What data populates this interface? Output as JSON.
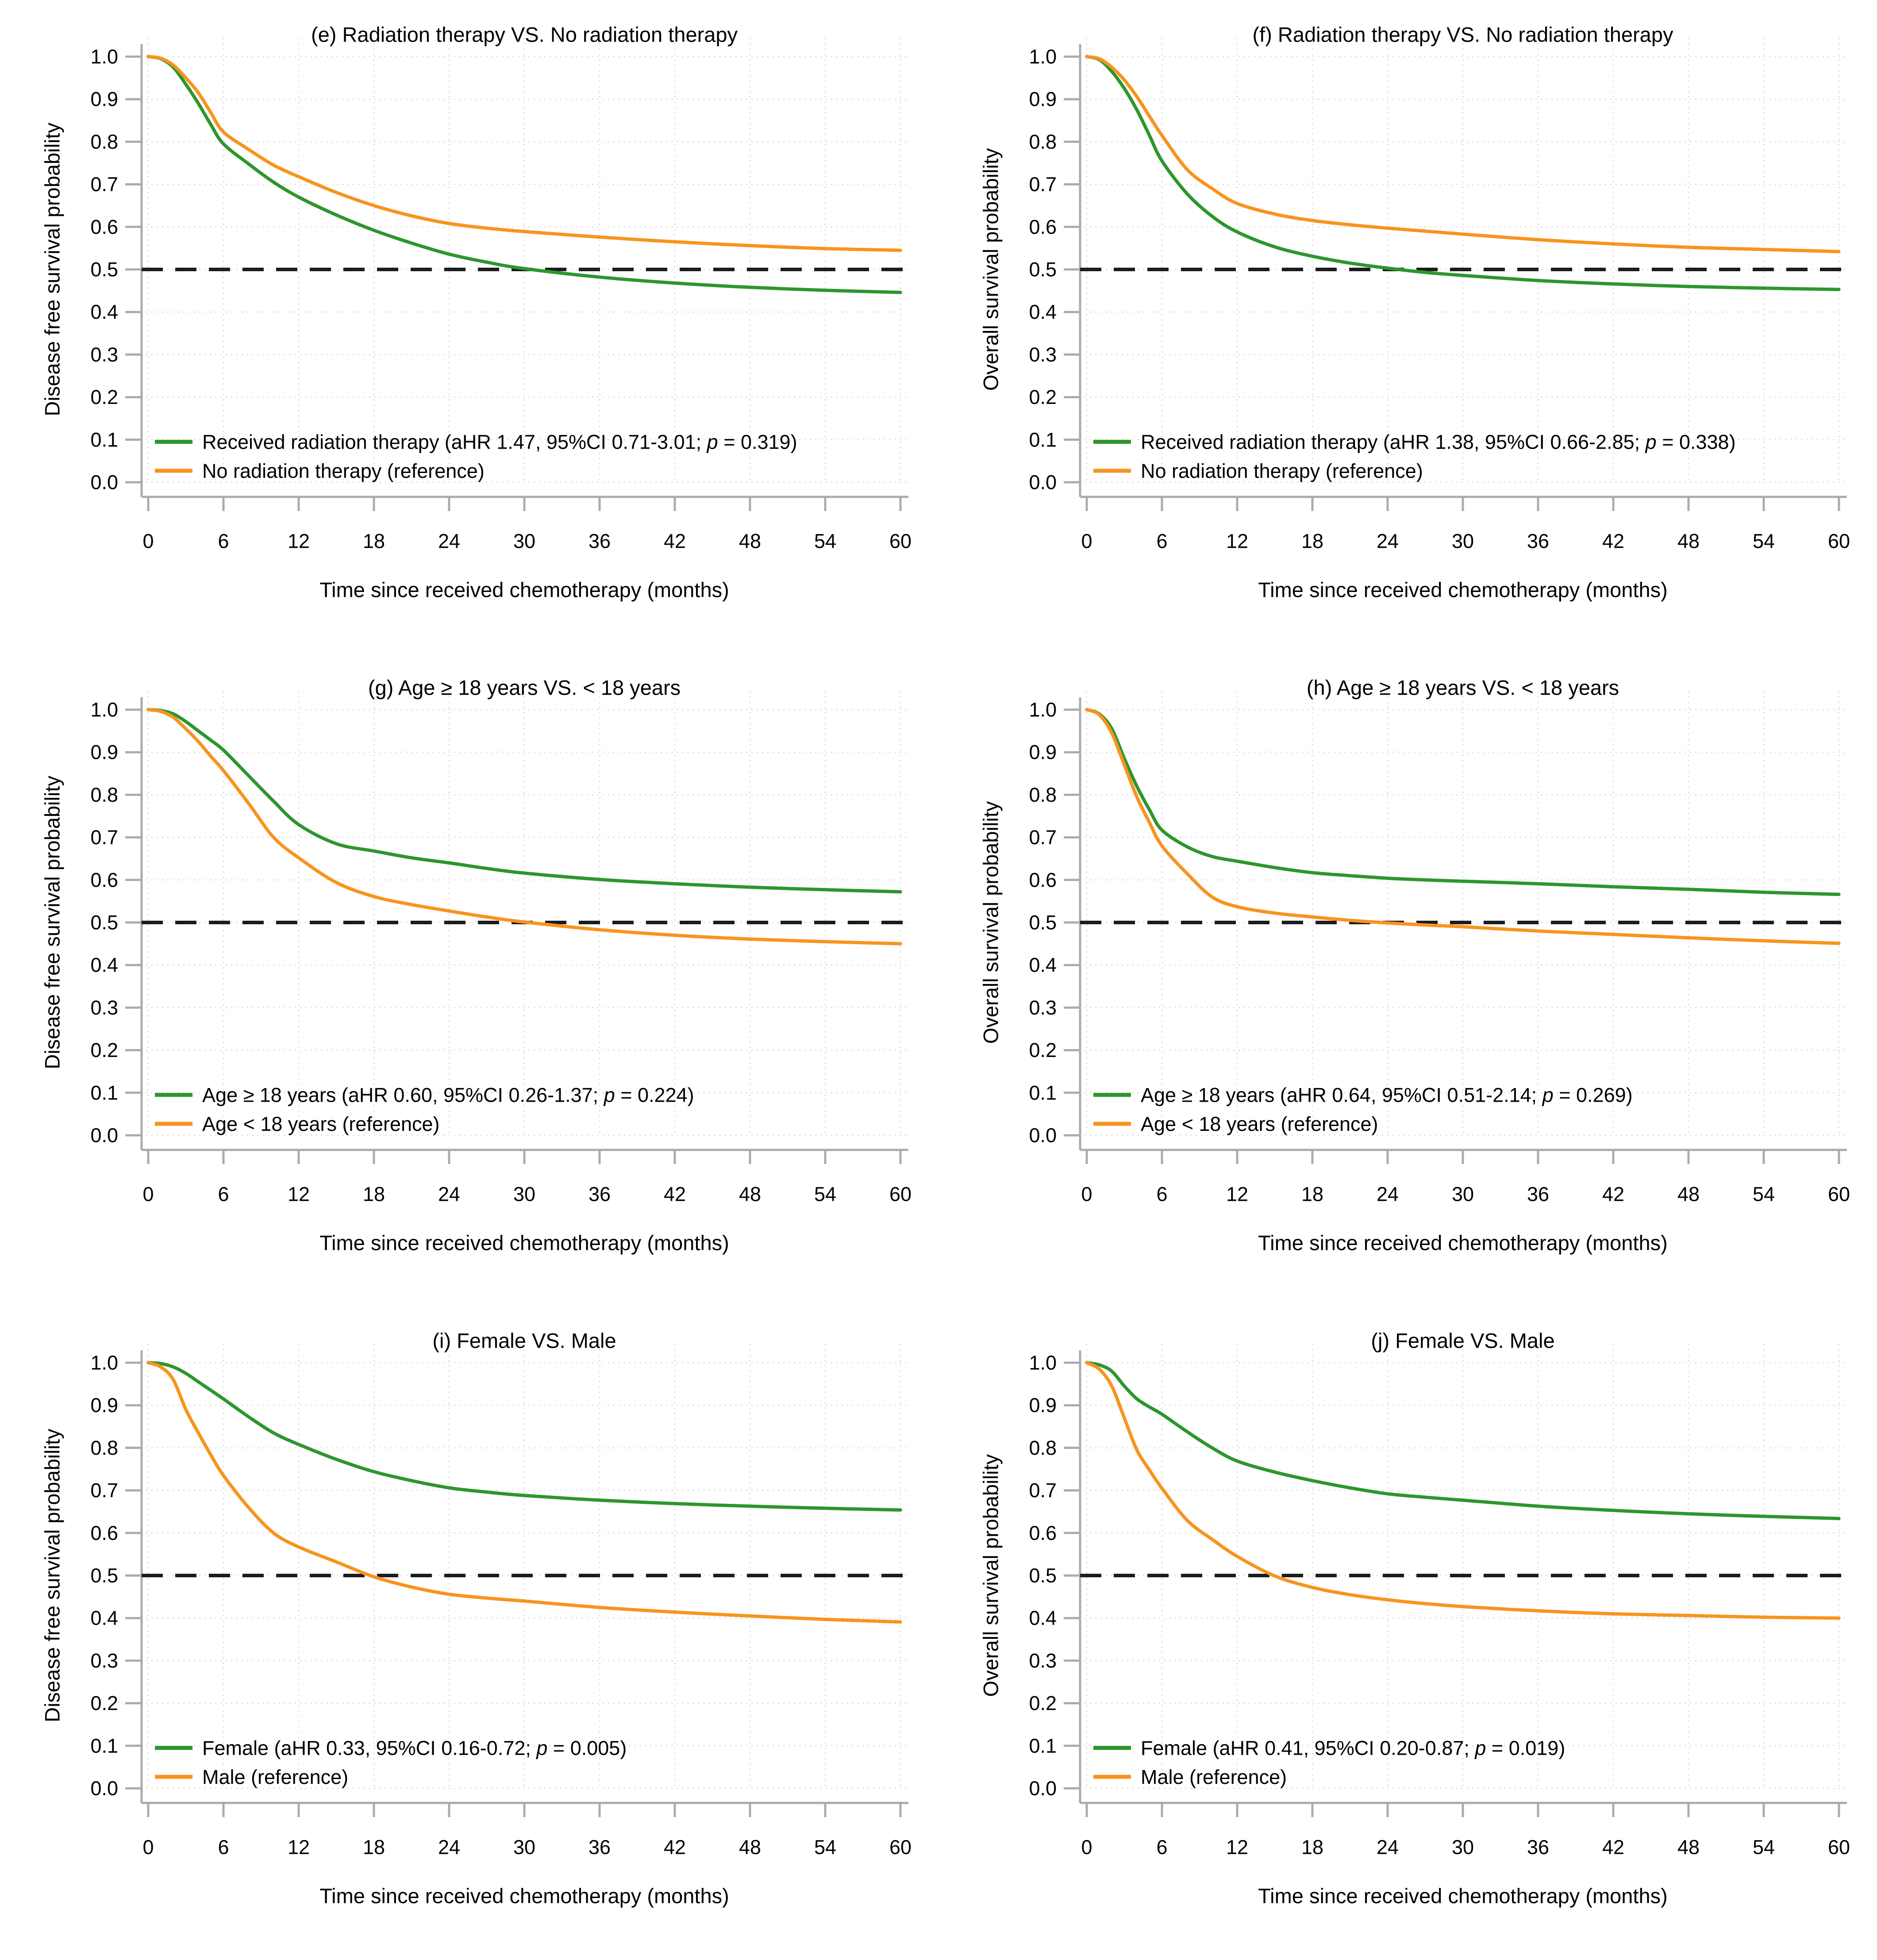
{
  "shared": {
    "xlabel": "Time since received chemotherapy (months)",
    "xticks": [
      0,
      6,
      12,
      18,
      24,
      30,
      36,
      42,
      48,
      54,
      60
    ],
    "yticks": [
      "0.0",
      "0.1",
      "0.2",
      "0.3",
      "0.4",
      "0.5",
      "0.6",
      "0.7",
      "0.8",
      "0.9",
      "1.0"
    ],
    "reference_line": 0.5,
    "xlim": [
      0,
      60
    ],
    "ylim": [
      0.0,
      1.0
    ],
    "grid": "dotted, on",
    "legend_position": "lower left inside plot",
    "colors": {
      "green": "#2D962D",
      "orange": "#F7941E",
      "axis": "#ABABAB",
      "gridline": "#DADADA",
      "reference_dashed": "#1C1C1C",
      "text": "#000000",
      "background": "#FFFFFF"
    }
  },
  "chart_data": [
    {
      "id": "e",
      "type": "line",
      "title": "(e) Radiation therapy VS. No radiation therapy",
      "ylabel": "Disease free survival probability",
      "x": [
        0,
        1,
        2,
        3,
        4,
        5,
        6,
        8,
        10,
        12,
        15,
        18,
        21,
        24,
        27,
        30,
        36,
        42,
        48,
        54,
        60
      ],
      "series": [
        {
          "name": "Received radiation therapy",
          "color_key": "green",
          "legend_pre": "Received radiation therapy (aHR 1.47, 95%CI 0.71-3.01; ",
          "legend_p": "p",
          "legend_post": " = 0.319)",
          "values": [
            1.0,
            0.995,
            0.975,
            0.935,
            0.89,
            0.84,
            0.795,
            0.748,
            0.705,
            0.67,
            0.628,
            0.592,
            0.562,
            0.536,
            0.517,
            0.502,
            0.482,
            0.468,
            0.458,
            0.451,
            0.446
          ]
        },
        {
          "name": "No radiation therapy",
          "color_key": "orange",
          "legend_pre": "No radiation therapy (reference)",
          "values": [
            1.0,
            0.996,
            0.98,
            0.95,
            0.915,
            0.868,
            0.823,
            0.782,
            0.745,
            0.718,
            0.681,
            0.65,
            0.626,
            0.608,
            0.597,
            0.589,
            0.576,
            0.565,
            0.556,
            0.549,
            0.545
          ]
        }
      ]
    },
    {
      "id": "f",
      "type": "line",
      "title": "(f) Radiation therapy VS. No radiation therapy",
      "ylabel": "Overall survival probability",
      "x": [
        0,
        1,
        2,
        3,
        4,
        5,
        6,
        8,
        10,
        12,
        15,
        18,
        21,
        24,
        27,
        30,
        36,
        42,
        48,
        54,
        60
      ],
      "series": [
        {
          "name": "Received radiation therapy",
          "color_key": "green",
          "legend_pre": "Received radiation therapy (aHR 1.38, 95%CI 0.66-2.85; ",
          "legend_p": "p",
          "legend_post": " = 0.338)",
          "values": [
            1.0,
            0.993,
            0.965,
            0.925,
            0.875,
            0.815,
            0.755,
            0.678,
            0.625,
            0.588,
            0.553,
            0.531,
            0.515,
            0.503,
            0.493,
            0.486,
            0.474,
            0.466,
            0.46,
            0.456,
            0.453
          ]
        },
        {
          "name": "No radiation therapy",
          "color_key": "orange",
          "legend_pre": "No radiation therapy (reference)",
          "values": [
            1.0,
            0.995,
            0.975,
            0.945,
            0.906,
            0.86,
            0.815,
            0.735,
            0.69,
            0.655,
            0.63,
            0.615,
            0.605,
            0.597,
            0.59,
            0.583,
            0.57,
            0.56,
            0.552,
            0.547,
            0.542
          ]
        }
      ]
    },
    {
      "id": "g",
      "type": "line",
      "title": "(g) Age ≥ 18 years VS. < 18 years",
      "ylabel": "Disease free survival probability",
      "x": [
        0,
        1,
        2,
        3,
        4,
        5,
        6,
        8,
        10,
        12,
        15,
        18,
        21,
        24,
        27,
        30,
        36,
        42,
        48,
        54,
        60
      ],
      "series": [
        {
          "name": "Age ≥ 18 years",
          "color_key": "green",
          "legend_pre": "Age ≥ 18 years (aHR 0.60, 95%CI 0.26-1.37; ",
          "legend_p": "p",
          "legend_post": " = 0.224)",
          "values": [
            1.0,
            0.998,
            0.99,
            0.972,
            0.95,
            0.928,
            0.905,
            0.845,
            0.785,
            0.73,
            0.685,
            0.668,
            0.652,
            0.64,
            0.627,
            0.616,
            0.601,
            0.591,
            0.583,
            0.577,
            0.572
          ]
        },
        {
          "name": "Age < 18 years",
          "color_key": "orange",
          "legend_pre": "Age < 18 years (reference)",
          "values": [
            1.0,
            0.996,
            0.982,
            0.955,
            0.925,
            0.89,
            0.857,
            0.78,
            0.7,
            0.652,
            0.594,
            0.561,
            0.542,
            0.527,
            0.513,
            0.501,
            0.483,
            0.47,
            0.461,
            0.455,
            0.45
          ]
        }
      ]
    },
    {
      "id": "h",
      "type": "line",
      "title": "(h) Age ≥ 18 years VS. < 18 years",
      "ylabel": "Overall survival probability",
      "x": [
        0,
        1,
        2,
        3,
        4,
        5,
        6,
        8,
        10,
        12,
        15,
        18,
        21,
        24,
        27,
        30,
        36,
        42,
        48,
        54,
        60
      ],
      "series": [
        {
          "name": "Age ≥ 18 years",
          "color_key": "green",
          "legend_pre": "Age ≥ 18 years (aHR 0.64, 95%CI 0.51-2.14; ",
          "legend_p": "p",
          "legend_post": " = 0.269)",
          "values": [
            1.0,
            0.99,
            0.955,
            0.885,
            0.82,
            0.765,
            0.717,
            0.678,
            0.655,
            0.644,
            0.629,
            0.617,
            0.61,
            0.604,
            0.6,
            0.597,
            0.591,
            0.584,
            0.578,
            0.571,
            0.566
          ]
        },
        {
          "name": "Age < 18 years",
          "color_key": "orange",
          "legend_pre": "Age < 18 years (reference)",
          "values": [
            1.0,
            0.988,
            0.945,
            0.87,
            0.795,
            0.735,
            0.68,
            0.615,
            0.56,
            0.537,
            0.522,
            0.513,
            0.505,
            0.499,
            0.494,
            0.49,
            0.48,
            0.472,
            0.464,
            0.457,
            0.451
          ]
        }
      ]
    },
    {
      "id": "i",
      "type": "line",
      "title": "(i) Female VS. Male",
      "ylabel": "Disease free survival probability",
      "x": [
        0,
        1,
        2,
        3,
        4,
        5,
        6,
        8,
        10,
        12,
        15,
        18,
        21,
        24,
        27,
        30,
        36,
        42,
        48,
        54,
        60
      ],
      "series": [
        {
          "name": "Female",
          "color_key": "green",
          "legend_pre": "Female (aHR 0.33, 95%CI 0.16-0.72; ",
          "legend_p": "p",
          "legend_post": " = 0.005)",
          "values": [
            1.0,
            0.998,
            0.99,
            0.975,
            0.955,
            0.935,
            0.915,
            0.873,
            0.835,
            0.808,
            0.773,
            0.744,
            0.723,
            0.706,
            0.696,
            0.688,
            0.677,
            0.669,
            0.663,
            0.658,
            0.654
          ]
        },
        {
          "name": "Male",
          "color_key": "orange",
          "legend_pre": "Male (reference)",
          "values": [
            1.0,
            0.99,
            0.96,
            0.89,
            0.835,
            0.783,
            0.735,
            0.66,
            0.6,
            0.567,
            0.532,
            0.497,
            0.473,
            0.456,
            0.447,
            0.44,
            0.425,
            0.414,
            0.405,
            0.397,
            0.391
          ]
        }
      ]
    },
    {
      "id": "j",
      "type": "line",
      "title": "(j) Female VS. Male",
      "ylabel": "Overall survival probability",
      "x": [
        0,
        1,
        2,
        3,
        4,
        5,
        6,
        8,
        10,
        12,
        15,
        18,
        21,
        24,
        27,
        30,
        36,
        42,
        48,
        54,
        60
      ],
      "series": [
        {
          "name": "Female",
          "color_key": "green",
          "legend_pre": "Female (aHR 0.41, 95%CI 0.20-0.87; ",
          "legend_p": "p",
          "legend_post": " = 0.019)",
          "values": [
            1.0,
            0.995,
            0.98,
            0.945,
            0.915,
            0.896,
            0.879,
            0.838,
            0.8,
            0.769,
            0.743,
            0.723,
            0.706,
            0.692,
            0.684,
            0.677,
            0.663,
            0.653,
            0.645,
            0.639,
            0.634
          ]
        },
        {
          "name": "Male",
          "color_key": "orange",
          "legend_pre": "Male (reference)",
          "values": [
            1.0,
            0.985,
            0.945,
            0.87,
            0.795,
            0.748,
            0.705,
            0.63,
            0.585,
            0.545,
            0.499,
            0.472,
            0.455,
            0.443,
            0.434,
            0.427,
            0.417,
            0.41,
            0.406,
            0.402,
            0.4
          ]
        }
      ]
    }
  ]
}
